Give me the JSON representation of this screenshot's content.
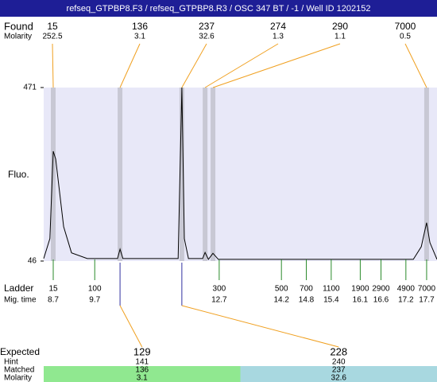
{
  "header": {
    "title": "refseq_GTPBP8.F3 / refseq_GTPBP8.R3 / OSC 347 BT  / -1 / Well ID 1202152"
  },
  "found": {
    "label": "Found",
    "molarity_label": "Molarity",
    "peaks": [
      {
        "size": 15,
        "molarity": 252.5,
        "time": 8.7
      },
      {
        "size": 136,
        "molarity": 3.1,
        "time": 10.31
      },
      {
        "size": 237,
        "molarity": 32.6,
        "time": 11.8
      },
      {
        "size": 274,
        "molarity": 1.3,
        "time": 12.36
      },
      {
        "size": 290,
        "molarity": 1.1,
        "time": 12.55
      },
      {
        "size": 7000,
        "molarity": 0.5,
        "time": 17.7
      }
    ]
  },
  "plot": {
    "y_label": "Fluo.",
    "ylim": [
      46,
      471
    ],
    "yticks": [
      46,
      471
    ],
    "xlim": [
      8.47,
      17.95
    ],
    "trace": {
      "x": [
        8.47,
        8.62,
        8.7,
        8.76,
        8.85,
        8.95,
        9.14,
        9.52,
        10.25,
        10.31,
        10.38,
        11.71,
        11.8,
        11.86,
        11.96,
        12.3,
        12.36,
        12.44,
        12.55,
        12.68,
        17.38,
        17.57,
        17.7,
        17.78,
        17.95
      ],
      "y": [
        52,
        101,
        315,
        296,
        218,
        130,
        66,
        52,
        52,
        75,
        52,
        52,
        471,
        101,
        52,
        52,
        67,
        50,
        65,
        50,
        50,
        81,
        140,
        91,
        50
      ]
    }
  },
  "ladder": {
    "label": "Ladder",
    "time_label": "Mig. time",
    "sizes": [
      15,
      100,
      300,
      500,
      700,
      1100,
      1900,
      2900,
      4900,
      7000
    ],
    "times": [
      8.7,
      9.7,
      12.7,
      14.2,
      14.8,
      15.4,
      16.1,
      16.6,
      17.2,
      17.7
    ]
  },
  "expected": {
    "labels": {
      "expected": "Expected",
      "hint": "Hint",
      "matched": "Matched",
      "molarity": "Molarity"
    },
    "items": [
      {
        "expected": 129,
        "hint": 141,
        "matched": 136,
        "molarity": 3.1,
        "color": "#90e890"
      },
      {
        "expected": 228,
        "hint": 240,
        "matched": 237,
        "molarity": 32.6,
        "color": "#a8d8e0"
      }
    ]
  }
}
